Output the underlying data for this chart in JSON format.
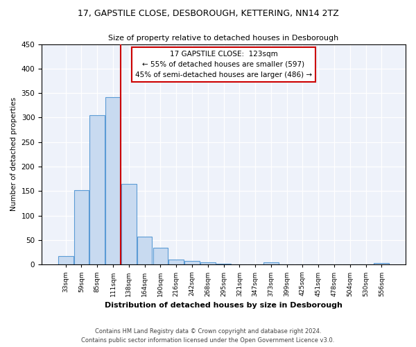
{
  "title_line1": "17, GAPSTILE CLOSE, DESBOROUGH, KETTERING, NN14 2TZ",
  "title_line2": "Size of property relative to detached houses in Desborough",
  "xlabel": "Distribution of detached houses by size in Desborough",
  "ylabel": "Number of detached properties",
  "bar_color": "#c8daf0",
  "bar_edge_color": "#5b9bd5",
  "categories": [
    "33sqm",
    "59sqm",
    "85sqm",
    "111sqm",
    "138sqm",
    "164sqm",
    "190sqm",
    "216sqm",
    "242sqm",
    "268sqm",
    "295sqm",
    "321sqm",
    "347sqm",
    "373sqm",
    "399sqm",
    "425sqm",
    "451sqm",
    "478sqm",
    "504sqm",
    "530sqm",
    "556sqm"
  ],
  "values": [
    17,
    152,
    305,
    342,
    165,
    57,
    35,
    10,
    8,
    5,
    2,
    0,
    0,
    4,
    0,
    0,
    0,
    0,
    0,
    0,
    3
  ],
  "vline_x": 3.5,
  "vline_color": "#cc0000",
  "annotation_title": "17 GAPSTILE CLOSE:  123sqm",
  "annotation_line1": "← 55% of detached houses are smaller (597)",
  "annotation_line2": "45% of semi-detached houses are larger (486) →",
  "annotation_box_color": "#cc0000",
  "ylim": [
    0,
    450
  ],
  "yticks": [
    0,
    50,
    100,
    150,
    200,
    250,
    300,
    350,
    400,
    450
  ],
  "footer_line1": "Contains HM Land Registry data © Crown copyright and database right 2024.",
  "footer_line2": "Contains public sector information licensed under the Open Government Licence v3.0.",
  "background_color": "#eef2fa"
}
